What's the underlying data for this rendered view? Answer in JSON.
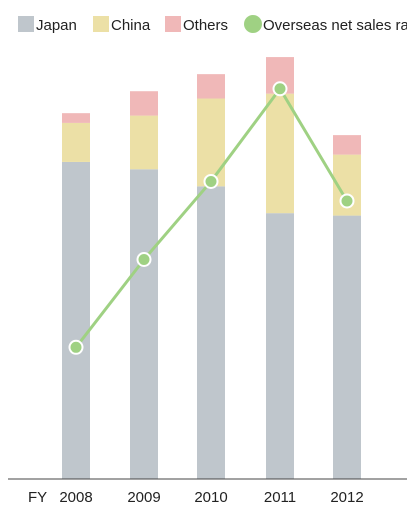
{
  "chart_data": {
    "type": "bar",
    "stacked": true,
    "x_axis_prefix": "FY",
    "categories": [
      "2008",
      "2009",
      "2010",
      "2011",
      "2012"
    ],
    "series": [
      {
        "name": "Japan",
        "color": "#bfc6cc",
        "values": [
          65,
          63.5,
          60,
          54.5,
          54
        ]
      },
      {
        "name": "China",
        "color": "#ece0a6",
        "values": [
          8,
          11,
          18,
          24.5,
          12.5
        ]
      },
      {
        "name": "Others",
        "color": "#f0b8b8",
        "values": [
          2,
          5,
          5,
          7.5,
          4
        ]
      }
    ],
    "line_series": {
      "name": "Overseas net sales ratio",
      "color": "#9fd183",
      "values": [
        27,
        45,
        61,
        80,
        57
      ],
      "ylim": [
        0,
        90
      ]
    },
    "ylim": [
      0,
      90
    ],
    "grid": false,
    "legend_position": "top"
  }
}
